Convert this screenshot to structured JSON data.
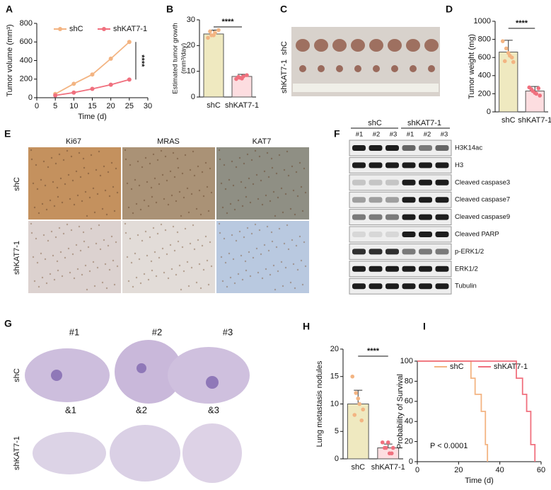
{
  "chart_data": [
    {
      "type": "line",
      "label": "A",
      "x": [
        5,
        10,
        15,
        20,
        25
      ],
      "series": [
        {
          "name": "shC",
          "color": "#f3b482",
          "values": [
            40,
            150,
            250,
            420,
            600
          ]
        },
        {
          "name": "shKAT7-1",
          "color": "#f0707e",
          "values": [
            25,
            55,
            95,
            140,
            195
          ]
        }
      ],
      "xlim": [
        0,
        30
      ],
      "xticks": [
        0,
        5,
        10,
        15,
        20,
        25,
        30
      ],
      "ylim": [
        0,
        800
      ],
      "yticks": [
        0,
        200,
        400,
        600,
        800
      ],
      "x_label": "Time (d)",
      "y_label": "Tumor volume (mm³)",
      "annotation": "****"
    },
    {
      "type": "bar",
      "label": "B",
      "categories": [
        "shC",
        "shKAT7-1"
      ],
      "values": [
        24.5,
        8
      ],
      "errors": [
        1.5,
        0.8
      ],
      "points": [
        [
          23,
          24,
          25,
          26,
          25.5,
          24
        ],
        [
          7,
          7.5,
          8,
          8.5,
          7.8,
          7.2
        ]
      ],
      "colors": [
        "#efe9c0",
        "#fddde0"
      ],
      "point_colors": [
        "#f3b482",
        "#f0707e"
      ],
      "ylim": [
        0,
        30
      ],
      "yticks": [
        0,
        10,
        20,
        30
      ],
      "y_label": [
        "Estimated tumor growth",
        "(mm³/day)"
      ],
      "annotation": "****"
    },
    {
      "type": "bar",
      "label": "D",
      "categories": [
        "shC",
        "shKAT7-1"
      ],
      "values": [
        660,
        230
      ],
      "errors": [
        130,
        50
      ],
      "points": [
        [
          780,
          700,
          620,
          550,
          560,
          650,
          600
        ],
        [
          270,
          230,
          200,
          180,
          250,
          210,
          260
        ]
      ],
      "colors": [
        "#efe9c0",
        "#fddde0"
      ],
      "point_colors": [
        "#f3b482",
        "#f0707e"
      ],
      "ylim": [
        0,
        1000
      ],
      "yticks": [
        0,
        200,
        400,
        600,
        800,
        1000
      ],
      "y_label": "Tumor weight (mg)",
      "annotation": "****"
    },
    {
      "type": "bar",
      "label": "H",
      "categories": [
        "shC",
        "shKAT7-1"
      ],
      "values": [
        10,
        2
      ],
      "errors": [
        2.5,
        0.7
      ],
      "points": [
        [
          15,
          12,
          10,
          9,
          8,
          11,
          7
        ],
        [
          3,
          2,
          1,
          2,
          2,
          3,
          1
        ]
      ],
      "colors": [
        "#efe9c0",
        "#fddde0"
      ],
      "point_colors": [
        "#f3b482",
        "#f0707e"
      ],
      "ylim": [
        0,
        20
      ],
      "yticks": [
        0,
        5,
        10,
        15,
        20
      ],
      "y_label": "Lung metastasis nodules",
      "annotation": "****"
    },
    {
      "type": "line",
      "label": "I",
      "step": true,
      "series": [
        {
          "name": "shC",
          "color": "#f3b482",
          "x": [
            0,
            26,
            28,
            31,
            33,
            34
          ],
          "values": [
            100,
            83,
            67,
            50,
            17,
            0
          ]
        },
        {
          "name": "shKAT7-1",
          "color": "#f0707e",
          "x": [
            0,
            48,
            51,
            53,
            55,
            57
          ],
          "values": [
            100,
            83,
            67,
            50,
            17,
            0
          ]
        }
      ],
      "xlim": [
        0,
        60
      ],
      "xticks": [
        0,
        20,
        40,
        60
      ],
      "ylim": [
        0,
        100
      ],
      "yticks": [
        0,
        20,
        40,
        60,
        80,
        100
      ],
      "x_label": "Time (d)",
      "y_label": "Probability of Survival",
      "annotation": "P < 0.0001"
    }
  ],
  "panels": {
    "C": {
      "label": "C",
      "rows": [
        "shC",
        "shKAT7-1"
      ]
    },
    "E": {
      "label": "E",
      "columns": [
        "Ki67",
        "MRAS",
        "KAT7"
      ],
      "rows": [
        "shC",
        "shKAT7-1"
      ]
    },
    "F": {
      "label": "F",
      "groups": [
        "shC",
        "shKAT7-1"
      ],
      "lanes": [
        "#1",
        "#2",
        "#3",
        "#1",
        "#2",
        "#3"
      ],
      "bands": [
        "H3K14ac",
        "H3",
        "Cleaved caspase3",
        "Cleaved caspase7",
        "Cleaved caspase9",
        "Cleaved PARP",
        "p-ERK1/2",
        "ERK1/2",
        "Tubulin"
      ]
    },
    "G": {
      "label": "G",
      "top": [
        "#1",
        "#2",
        "#3"
      ],
      "bottom": [
        "&1",
        "&2",
        "&3"
      ],
      "rows": [
        "shC",
        "shKAT7-1"
      ]
    }
  }
}
